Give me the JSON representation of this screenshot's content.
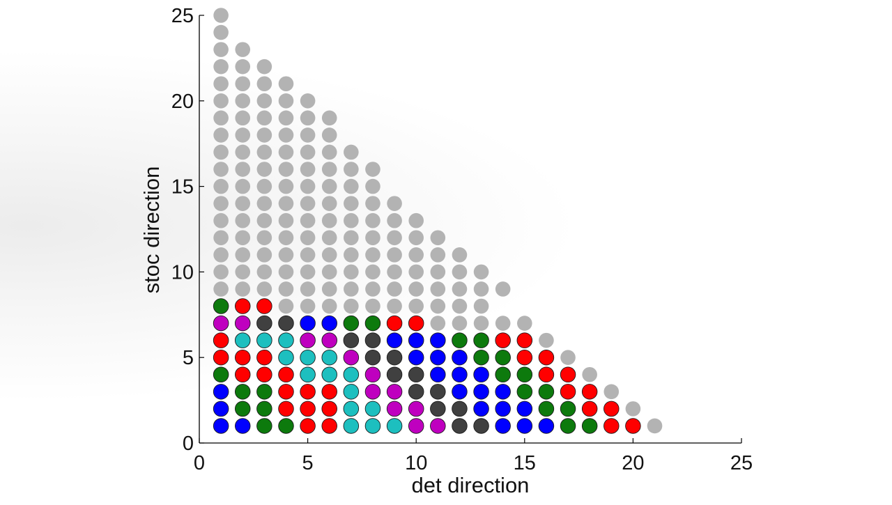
{
  "chart_data": {
    "type": "scatter",
    "title": "",
    "xlabel": "det direction",
    "ylabel": "stoc direction",
    "xlim": [
      0,
      25
    ],
    "ylim": [
      0,
      25
    ],
    "xticks": [
      "0",
      "5",
      "10",
      "15",
      "20",
      "25"
    ],
    "yticks": [
      "0",
      "5",
      "10",
      "15",
      "20",
      "25"
    ],
    "grid": false,
    "legend": "none",
    "colors": {
      "G": "#b3b3b3",
      "g": "#0d7a0d",
      "r": "#ff0000",
      "b": "#0000ff",
      "m": "#bf00bf",
      "c": "#1dbfbf",
      "k": "#404040"
    },
    "rows_bottom_to_top": [
      "bbggrrcccmmkkbbbggrrG",
      "bggrrrccmmkkbbbggrrG",
      "bggrrrcmmkkbbbggrrG",
      "grrrcccmkkbbbggrrG",
      "rrrcccmkkbbbggrrG",
      "rcccmmkkbbbggrrG",
      "mmkkbbggrrGGGGG",
      "grrGGGGGGGGGG",
      "GGGGGGGGGGGGGG",
      "GGGGGGGGGGGGG",
      "GGGGGGGGGGGG",
      "GGGGGGGGGGG",
      "GGGGGGGGGG",
      "GGGGGGGGG",
      "GGGGGGGG",
      "GGGGGGGG",
      "GGGGGGG",
      "GGGGGG",
      "GGGGGG",
      "GGGGG",
      "GGGG",
      "GGG",
      "GG",
      "G",
      "G"
    ]
  }
}
